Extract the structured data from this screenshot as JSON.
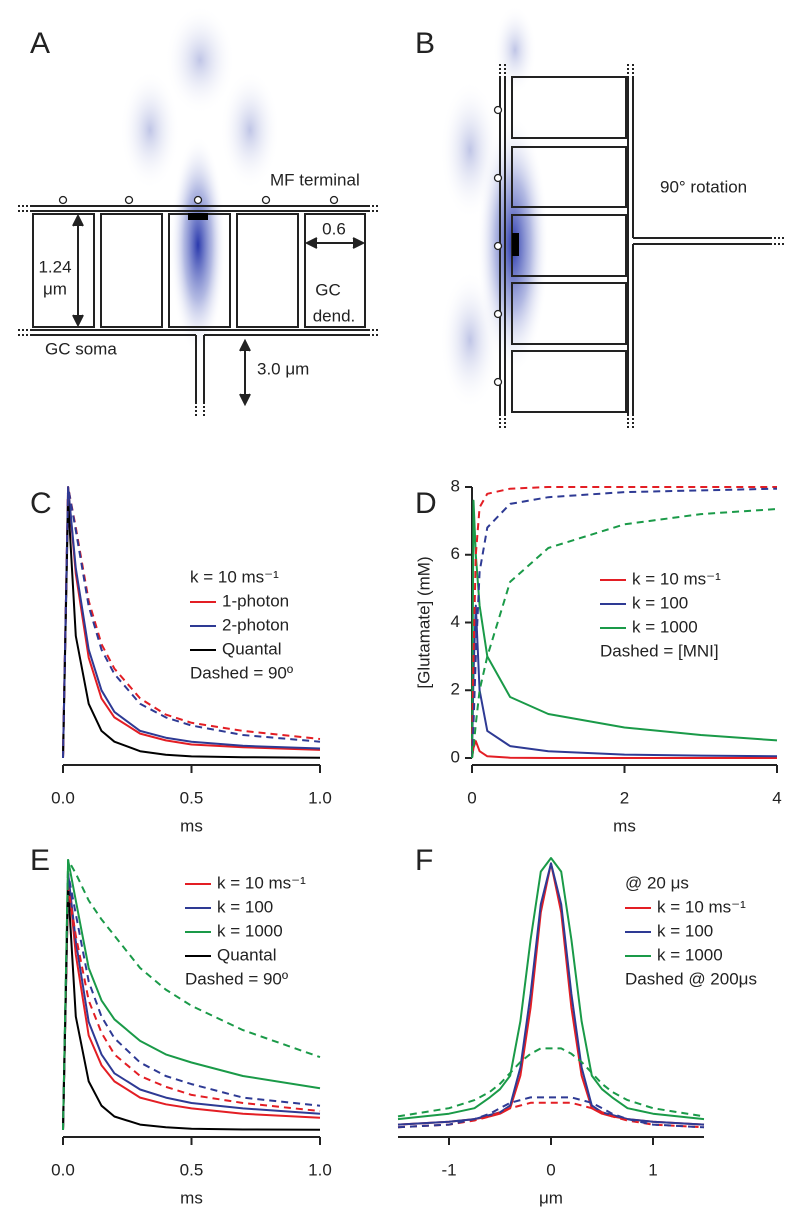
{
  "diagram_a": {
    "panel_label": "A",
    "mf_terminal": "MF terminal",
    "height_value": "1.24",
    "height_unit": "μm",
    "width_label": "0.6",
    "gc_dend_line1": "GC",
    "gc_dend_line2": "dend.",
    "gc_soma": "GC soma",
    "stem_length": "3.0 μm"
  },
  "diagram_b": {
    "panel_label": "B",
    "rotation": "90° rotation"
  },
  "chart_data": [
    {
      "type": "line",
      "panel_label": "C",
      "xlabel": "ms",
      "x": [
        0,
        0.02,
        0.05,
        0.1,
        0.15,
        0.2,
        0.3,
        0.4,
        0.5,
        0.7,
        1.0
      ],
      "xlim": [
        0,
        1
      ],
      "xticks": [
        {
          "value": 0,
          "label": "0.0"
        },
        0.5,
        {
          "value": 1,
          "label": "1.0"
        }
      ],
      "ylim": [
        0,
        1
      ],
      "legend_title": "k = 10 ms⁻¹",
      "legend_note": "Dashed = 90º",
      "series": [
        {
          "name": "1-photon",
          "color": "#e31e24",
          "values": [
            0,
            1.0,
            0.68,
            0.37,
            0.22,
            0.15,
            0.09,
            0.065,
            0.05,
            0.04,
            0.03
          ]
        },
        {
          "name": "2-photon",
          "color": "#2e3a94",
          "values": [
            0,
            1.0,
            0.7,
            0.4,
            0.25,
            0.17,
            0.1,
            0.075,
            0.06,
            0.045,
            0.035
          ]
        },
        {
          "name": "Quantal",
          "color": "#000000",
          "values": [
            0,
            0.95,
            0.45,
            0.2,
            0.1,
            0.06,
            0.025,
            0.012,
            0.006,
            0.003,
            0.001
          ]
        },
        {
          "color": "#e31e24",
          "dashed": true,
          "values": [
            0,
            1.0,
            0.85,
            0.58,
            0.42,
            0.33,
            0.22,
            0.16,
            0.13,
            0.1,
            0.07
          ]
        },
        {
          "color": "#2e3a94",
          "dashed": true,
          "values": [
            0,
            1.0,
            0.84,
            0.56,
            0.4,
            0.31,
            0.2,
            0.15,
            0.12,
            0.085,
            0.06
          ]
        }
      ]
    },
    {
      "type": "line",
      "panel_label": "D",
      "xlabel": "ms",
      "ylabel": "[Glutamate] (mM)",
      "x": [
        0,
        0.02,
        0.05,
        0.1,
        0.2,
        0.5,
        1,
        2,
        3,
        4
      ],
      "xlim": [
        0,
        4
      ],
      "xticks": [
        0,
        2,
        4
      ],
      "ylim": [
        0,
        8
      ],
      "yticks": [
        0,
        2,
        4,
        6,
        8
      ],
      "legend_note": "Dashed = [MNI]",
      "series": [
        {
          "name": "k = 10 ms⁻¹",
          "color": "#e31e24",
          "values": [
            0,
            0.3,
            0.5,
            0.2,
            0.05,
            0.01,
            0,
            0,
            0,
            0
          ]
        },
        {
          "name": "k = 100",
          "color": "#2e3a94",
          "values": [
            0,
            2.5,
            4.5,
            2,
            0.8,
            0.35,
            0.2,
            0.1,
            0.07,
            0.05
          ]
        },
        {
          "name": "k = 1000",
          "color": "#1a9a48",
          "values": [
            0,
            7.6,
            6,
            4.5,
            3,
            1.8,
            1.3,
            0.9,
            0.68,
            0.52
          ]
        },
        {
          "color": "#e31e24",
          "dashed": true,
          "values": [
            0,
            3,
            6,
            7.4,
            7.8,
            7.95,
            8,
            8,
            8,
            8
          ]
        },
        {
          "color": "#2e3a94",
          "dashed": true,
          "values": [
            0,
            1,
            3,
            5.5,
            6.8,
            7.5,
            7.7,
            7.85,
            7.9,
            7.95
          ]
        },
        {
          "color": "#1a9a48",
          "dashed": true,
          "values": [
            0,
            0.3,
            1,
            2,
            3,
            5.2,
            6.2,
            6.9,
            7.2,
            7.35
          ]
        }
      ]
    },
    {
      "type": "line",
      "panel_label": "E",
      "xlabel": "ms",
      "x": [
        0,
        0.02,
        0.05,
        0.1,
        0.15,
        0.2,
        0.3,
        0.4,
        0.5,
        0.7,
        1.0
      ],
      "xlim": [
        0,
        1
      ],
      "xticks": [
        {
          "value": 0,
          "label": "0.0"
        },
        0.5,
        {
          "value": 1,
          "label": "1.0"
        }
      ],
      "ylim": [
        0,
        1
      ],
      "legend_note": "Dashed = 90º",
      "series": [
        {
          "name": "k = 10 ms⁻¹",
          "color": "#e31e24",
          "values": [
            0,
            0.95,
            0.65,
            0.35,
            0.24,
            0.18,
            0.12,
            0.095,
            0.08,
            0.06,
            0.045
          ]
        },
        {
          "name": "k = 100",
          "color": "#2e3a94",
          "values": [
            0,
            0.95,
            0.7,
            0.4,
            0.28,
            0.21,
            0.15,
            0.12,
            0.1,
            0.08,
            0.06
          ]
        },
        {
          "name": "k = 1000",
          "color": "#1a9a48",
          "values": [
            0,
            1,
            0.85,
            0.6,
            0.48,
            0.41,
            0.33,
            0.28,
            0.25,
            0.2,
            0.155
          ]
        },
        {
          "name": "Quantal",
          "color": "#000000",
          "values": [
            0,
            0.9,
            0.42,
            0.18,
            0.09,
            0.05,
            0.02,
            0.01,
            0.005,
            0.002,
            0.001
          ]
        },
        {
          "color": "#e31e24",
          "dashed": true,
          "values": [
            0,
            0.9,
            0.72,
            0.48,
            0.36,
            0.28,
            0.2,
            0.16,
            0.13,
            0.1,
            0.07
          ]
        },
        {
          "color": "#2e3a94",
          "dashed": true,
          "values": [
            0,
            0.95,
            0.8,
            0.55,
            0.42,
            0.34,
            0.25,
            0.2,
            0.17,
            0.12,
            0.09
          ]
        },
        {
          "color": "#1a9a48",
          "dashed": true,
          "values": [
            0,
            1,
            0.95,
            0.85,
            0.78,
            0.72,
            0.6,
            0.52,
            0.46,
            0.37,
            0.27
          ]
        }
      ]
    },
    {
      "type": "line",
      "panel_label": "F",
      "xlabel": "μm",
      "x": [
        -1.5,
        -1,
        -0.75,
        -0.6,
        -0.5,
        -0.4,
        -0.3,
        -0.2,
        -0.1,
        0,
        0.1,
        0.2,
        0.3,
        0.4,
        0.5,
        0.6,
        0.75,
        1,
        1.5
      ],
      "xlim": [
        -1.5,
        1.5
      ],
      "xticks": [
        -1,
        0,
        1
      ],
      "ylim": [
        0,
        1
      ],
      "legend_title": "@ 20 μs",
      "legend_note": "Dashed @ 200μs",
      "series": [
        {
          "name": "k = 10 ms⁻¹",
          "color": "#e31e24",
          "values": [
            0.02,
            0.03,
            0.04,
            0.05,
            0.06,
            0.08,
            0.2,
            0.45,
            0.8,
            0.98,
            0.8,
            0.45,
            0.2,
            0.08,
            0.06,
            0.05,
            0.04,
            0.03,
            0.02
          ]
        },
        {
          "name": "k = 100",
          "color": "#2e3a94",
          "values": [
            0.02,
            0.03,
            0.04,
            0.055,
            0.065,
            0.09,
            0.23,
            0.5,
            0.83,
            0.98,
            0.83,
            0.5,
            0.23,
            0.09,
            0.065,
            0.055,
            0.04,
            0.03,
            0.02
          ]
        },
        {
          "name": "k = 1000",
          "color": "#1a9a48",
          "values": [
            0.04,
            0.06,
            0.08,
            0.12,
            0.15,
            0.2,
            0.4,
            0.7,
            0.95,
            1,
            0.95,
            0.7,
            0.4,
            0.2,
            0.15,
            0.12,
            0.08,
            0.06,
            0.04
          ]
        },
        {
          "color": "#e31e24",
          "dashed": true,
          "values": [
            0.01,
            0.02,
            0.035,
            0.05,
            0.065,
            0.08,
            0.09,
            0.1,
            0.1,
            0.1,
            0.1,
            0.1,
            0.09,
            0.08,
            0.065,
            0.05,
            0.035,
            0.02,
            0.01
          ]
        },
        {
          "color": "#2e3a94",
          "dashed": true,
          "values": [
            0.01,
            0.02,
            0.04,
            0.06,
            0.08,
            0.1,
            0.11,
            0.12,
            0.12,
            0.12,
            0.12,
            0.12,
            0.11,
            0.1,
            0.08,
            0.06,
            0.04,
            0.02,
            0.01
          ]
        },
        {
          "color": "#1a9a48",
          "dashed": true,
          "values": [
            0.05,
            0.08,
            0.11,
            0.14,
            0.17,
            0.21,
            0.25,
            0.28,
            0.3,
            0.3,
            0.3,
            0.28,
            0.25,
            0.21,
            0.17,
            0.14,
            0.11,
            0.08,
            0.05
          ]
        }
      ]
    }
  ]
}
